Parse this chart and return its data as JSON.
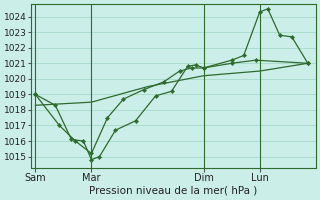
{
  "xlabel": "Pression niveau de la mer( hPa )",
  "bg_color": "#cceee8",
  "grid_color": "#aaddcc",
  "line_color": "#2d6a2d",
  "marker_color": "#2d6a2d",
  "ylim": [
    1014.3,
    1024.8
  ],
  "yticks": [
    1015,
    1016,
    1017,
    1018,
    1019,
    1020,
    1021,
    1022,
    1023,
    1024
  ],
  "xtick_labels": [
    "Sam",
    "Mar",
    "Dim",
    "Lun"
  ],
  "xtick_positions": [
    0,
    28,
    84,
    112
  ],
  "xlim": [
    -2,
    140
  ],
  "vline_positions": [
    0,
    28,
    84,
    112
  ],
  "series1_x": [
    0,
    10,
    18,
    24,
    28,
    32,
    40,
    50,
    60,
    68,
    76,
    80,
    84,
    98,
    104,
    112,
    116,
    122,
    128,
    136
  ],
  "series1_y": [
    1019.0,
    1018.3,
    1016.1,
    1016.0,
    1014.8,
    1015.0,
    1016.7,
    1017.3,
    1018.9,
    1019.2,
    1020.8,
    1020.9,
    1020.7,
    1021.2,
    1021.5,
    1024.3,
    1024.5,
    1022.8,
    1022.7,
    1021.0
  ],
  "series2_x": [
    0,
    12,
    20,
    28,
    36,
    44,
    54,
    64,
    72,
    78,
    84,
    98,
    110,
    136
  ],
  "series2_y": [
    1019.0,
    1017.0,
    1016.0,
    1015.2,
    1017.5,
    1018.7,
    1019.3,
    1019.8,
    1020.5,
    1020.7,
    1020.7,
    1021.0,
    1021.2,
    1021.0
  ],
  "series3_x": [
    0,
    28,
    56,
    84,
    112,
    136
  ],
  "series3_y": [
    1018.3,
    1018.5,
    1019.5,
    1020.2,
    1020.5,
    1021.0
  ]
}
